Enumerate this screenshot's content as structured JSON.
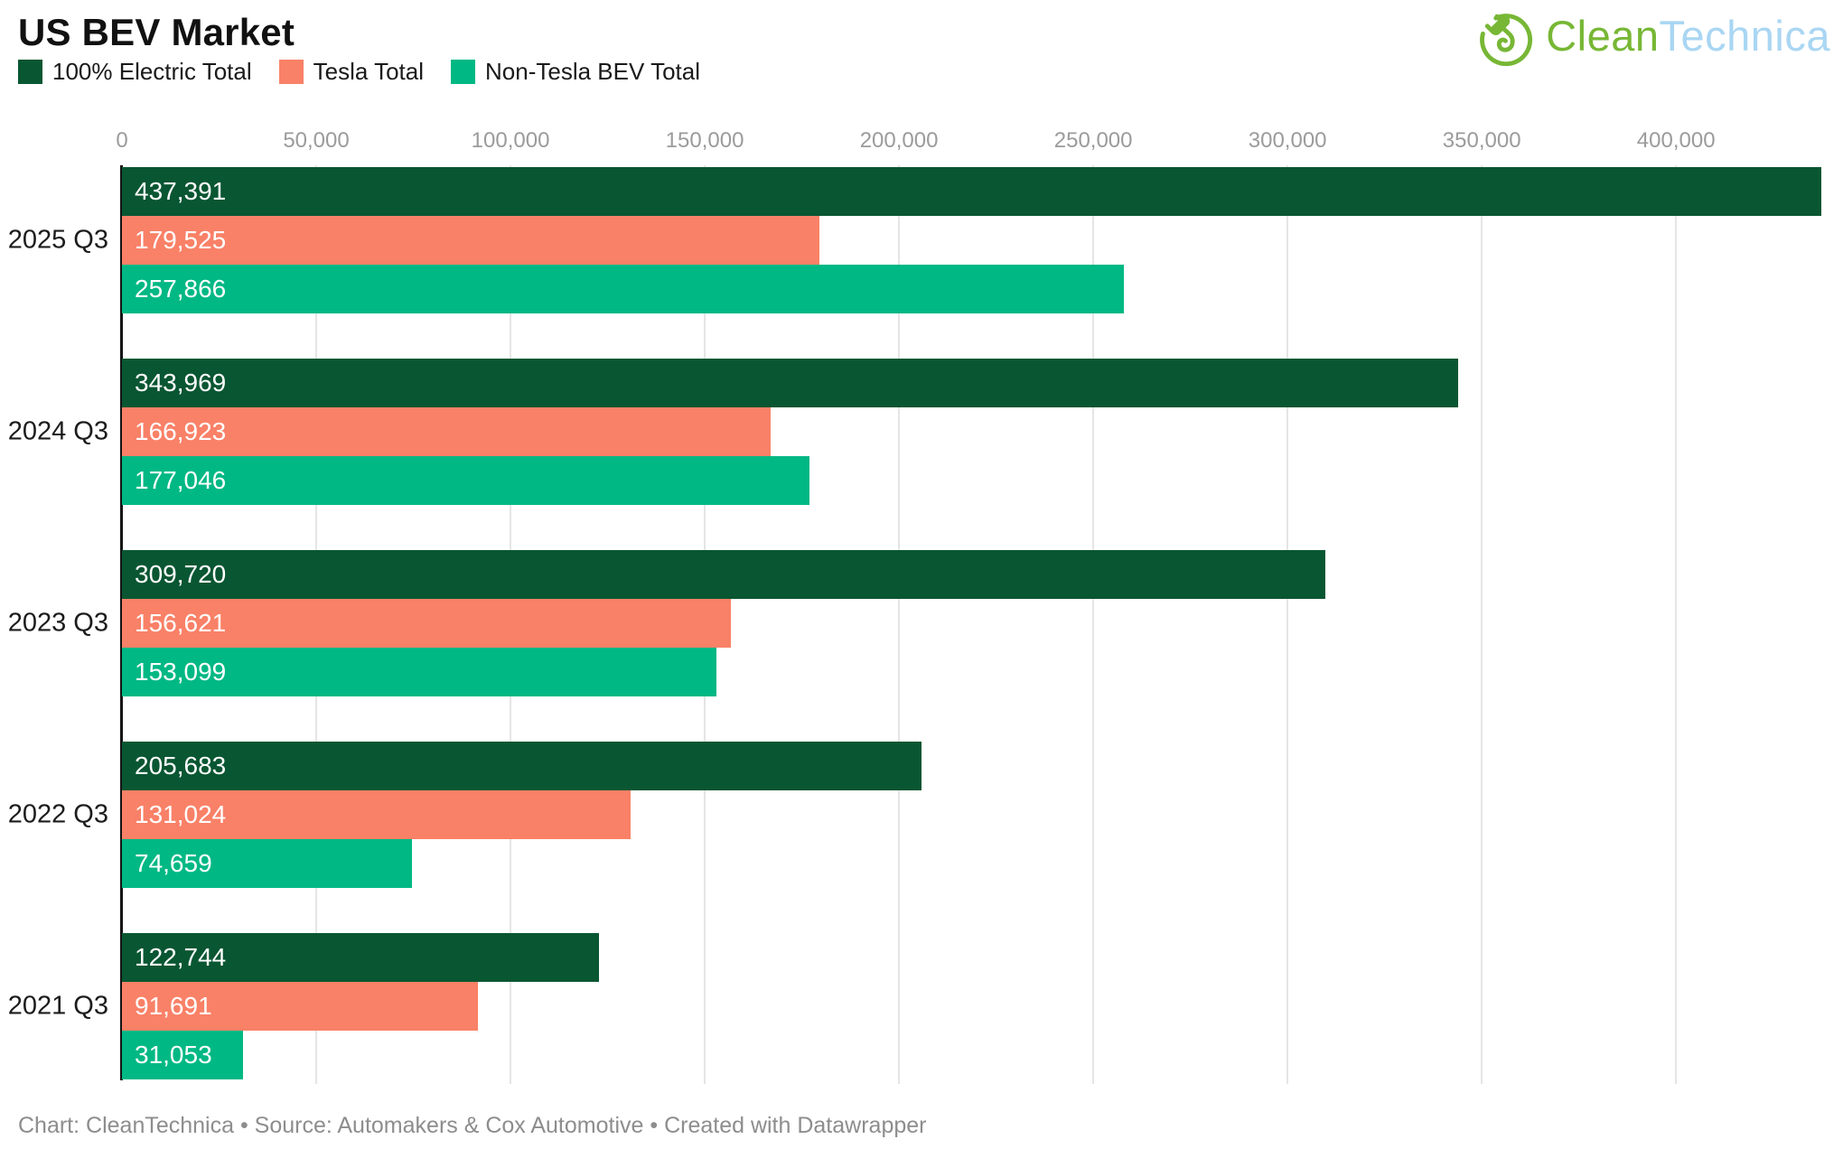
{
  "header": {
    "title": "US BEV Market",
    "logo": {
      "text_green": "Clean",
      "text_blue": "Technica",
      "green": "#77b735",
      "blue": "#a9d6f3"
    }
  },
  "chart_data": {
    "type": "bar",
    "orientation": "horizontal",
    "title": "US BEV Market",
    "categories": [
      "2025 Q3",
      "2024 Q3",
      "2023 Q3",
      "2022 Q3",
      "2021 Q3"
    ],
    "series": [
      {
        "name": "100% Electric Total",
        "color": "#095632",
        "values": [
          437391,
          343969,
          309720,
          205683,
          122744
        ]
      },
      {
        "name": "Tesla Total",
        "color": "#f98167",
        "values": [
          179525,
          166923,
          156621,
          131024,
          91691
        ]
      },
      {
        "name": "Non-Tesla BEV Total",
        "color": "#00b884",
        "values": [
          257866,
          177046,
          153099,
          74659,
          31053
        ]
      }
    ],
    "value_labels": [
      [
        "437,391",
        "343,969",
        "309,720",
        "205,683",
        "122,744"
      ],
      [
        "179,525",
        "166,923",
        "156,621",
        "131,024",
        "91,691"
      ],
      [
        "257,866",
        "177,046",
        "153,099",
        "74,659",
        "31,053"
      ]
    ],
    "axis": {
      "min": 0,
      "max": 437391,
      "tick_values": [
        0,
        50000,
        100000,
        150000,
        200000,
        250000,
        300000,
        350000,
        400000
      ],
      "tick_labels": [
        "0",
        "50,000",
        "100,000",
        "150,000",
        "200,000",
        "250,000",
        "300,000",
        "350,000",
        "400,000"
      ]
    },
    "grid": true,
    "legend_position": "top",
    "colors": {
      "axis_line": "#141414",
      "gridline": "#e5e5e5",
      "tick_text": "#9b9b9b",
      "value_text": "#ffffff",
      "category_text": "#1c1c1c"
    }
  },
  "footer": {
    "credit": "Chart: CleanTechnica • Source: Automakers & Cox Automotive • Created with Datawrapper"
  }
}
